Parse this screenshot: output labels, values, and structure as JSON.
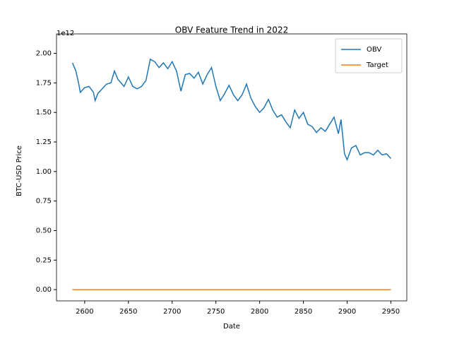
{
  "chart_data": {
    "type": "line",
    "title": "OBV Feature Trend in 2022",
    "x_label": "Date",
    "y_label": "BTC-USD Price",
    "y_offset_label": "1e12",
    "x": [
      2586,
      2590,
      2593,
      2595,
      2600,
      2605,
      2610,
      2612,
      2615,
      2620,
      2625,
      2630,
      2634,
      2638,
      2645,
      2650,
      2655,
      2660,
      2665,
      2670,
      2675,
      2680,
      2685,
      2690,
      2695,
      2700,
      2705,
      2710,
      2715,
      2720,
      2725,
      2730,
      2735,
      2740,
      2745,
      2750,
      2755,
      2760,
      2765,
      2770,
      2775,
      2780,
      2785,
      2790,
      2795,
      2800,
      2805,
      2810,
      2815,
      2820,
      2825,
      2830,
      2835,
      2840,
      2845,
      2850,
      2855,
      2860,
      2865,
      2870,
      2875,
      2880,
      2885,
      2890,
      2893,
      2897,
      2900,
      2905,
      2910,
      2915,
      2920,
      2925,
      2930,
      2935,
      2940,
      2945,
      2950
    ],
    "series": [
      {
        "name": "OBV",
        "color": "#1f77b4",
        "values": [
          1.92,
          1.85,
          1.75,
          1.67,
          1.71,
          1.72,
          1.67,
          1.6,
          1.66,
          1.7,
          1.74,
          1.75,
          1.85,
          1.78,
          1.72,
          1.8,
          1.72,
          1.7,
          1.72,
          1.77,
          1.95,
          1.93,
          1.88,
          1.92,
          1.87,
          1.93,
          1.85,
          1.68,
          1.82,
          1.83,
          1.79,
          1.84,
          1.74,
          1.82,
          1.88,
          1.72,
          1.6,
          1.66,
          1.73,
          1.65,
          1.6,
          1.65,
          1.74,
          1.62,
          1.55,
          1.5,
          1.54,
          1.61,
          1.52,
          1.46,
          1.48,
          1.42,
          1.37,
          1.52,
          1.45,
          1.5,
          1.4,
          1.38,
          1.33,
          1.37,
          1.34,
          1.4,
          1.46,
          1.32,
          1.44,
          1.15,
          1.1,
          1.2,
          1.22,
          1.14,
          1.16,
          1.16,
          1.14,
          1.18,
          1.14,
          1.15,
          1.11
        ]
      },
      {
        "name": "Target",
        "color": "#ff7f0e",
        "values": [
          0,
          0,
          0,
          0,
          0,
          0,
          0,
          0,
          0,
          0,
          0,
          0,
          0,
          0,
          0,
          0,
          0,
          0,
          0,
          0,
          0,
          0,
          0,
          0,
          0,
          0,
          0,
          0,
          0,
          0,
          0,
          0,
          0,
          0,
          0,
          0,
          0,
          0,
          0,
          0,
          0,
          0,
          0,
          0,
          0,
          0,
          0,
          0,
          0,
          0,
          0,
          0,
          0,
          0,
          0,
          0,
          0,
          0,
          0,
          0,
          0,
          0,
          0,
          0,
          0,
          0,
          0,
          0,
          0,
          0,
          0,
          0,
          0,
          0,
          0,
          0,
          0
        ]
      }
    ],
    "xlim": [
      2567.8,
      2968.2
    ],
    "xticks": [
      2600,
      2650,
      2700,
      2750,
      2800,
      2850,
      2900,
      2950
    ],
    "ylim": [
      -0.095,
      2.105
    ],
    "yticks": [
      {
        "value": 0,
        "label": "0.00"
      },
      {
        "value": 0.25,
        "label": "0.25"
      },
      {
        "value": 0.5,
        "label": "0.50"
      },
      {
        "value": 0.75,
        "label": "0.75"
      },
      {
        "value": 1,
        "label": "1.00"
      },
      {
        "value": 1.25,
        "label": "1.25"
      },
      {
        "value": 1.5,
        "label": "1.50"
      },
      {
        "value": 1.75,
        "label": "1.75"
      },
      {
        "value": 2,
        "label": "2.00"
      }
    ],
    "grid": false,
    "legend": "upper-right"
  }
}
